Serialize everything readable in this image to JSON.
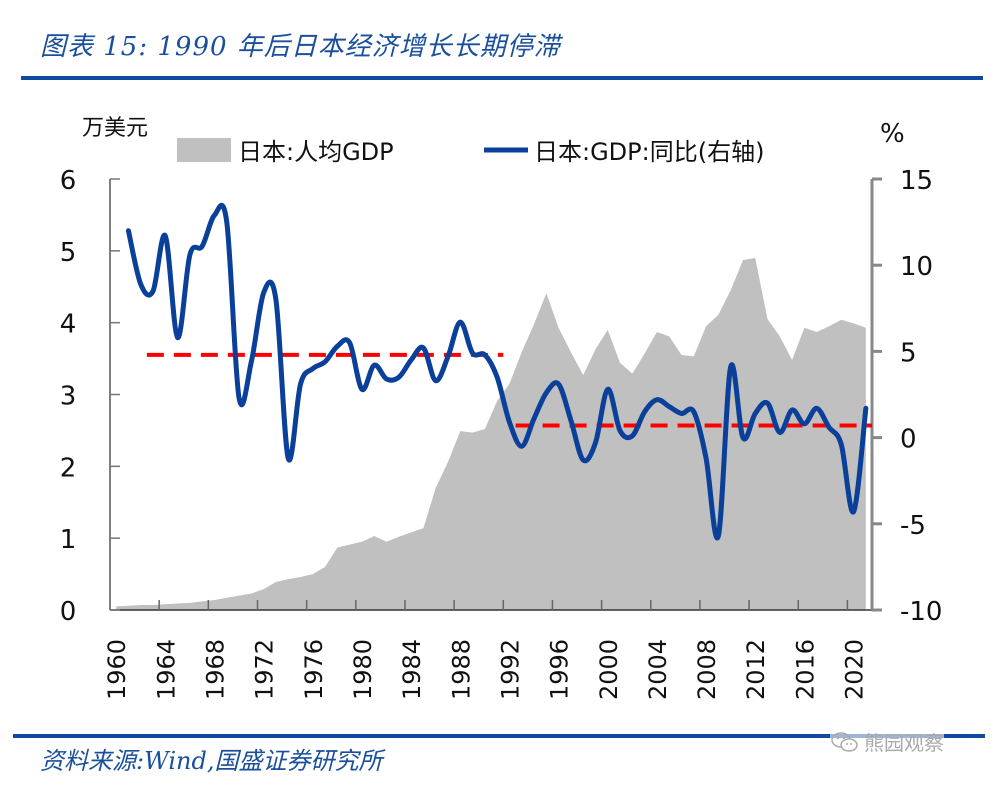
{
  "header": {
    "title": "图表 15:  1990 年后日本经济增长长期停滞"
  },
  "footer": {
    "source": "资料来源:Wind,国盛证券研究所",
    "watermark": "熊园观察",
    "watermark_icon": "wechat-icon"
  },
  "colors": {
    "brand_blue": "#0f4aa0",
    "area_fill": "#c0c0c0",
    "line": "#0a3f9a",
    "dashed": "#ff0000"
  },
  "chart_data": {
    "type": "area+line",
    "title": "1990 年后日本经济增长长期停滞",
    "xlabel": "",
    "ylabel": "万美元",
    "y2label": "%",
    "ylim": [
      0,
      6
    ],
    "y2lim": [
      -10,
      15
    ],
    "yticks": [
      "0",
      "1",
      "2",
      "3",
      "4",
      "5",
      "6"
    ],
    "y2ticks": [
      "-10",
      "-5",
      "0",
      "5",
      "10",
      "15"
    ],
    "xtick_labels": [
      "1960",
      "1964",
      "1968",
      "1972",
      "1976",
      "1980",
      "1984",
      "1988",
      "1992",
      "1996",
      "2000",
      "2004",
      "2008",
      "2012",
      "2016",
      "2020"
    ],
    "legend_position": "top",
    "grid": false,
    "categories": [
      1960,
      1961,
      1962,
      1963,
      1964,
      1965,
      1966,
      1967,
      1968,
      1969,
      1970,
      1971,
      1972,
      1973,
      1974,
      1975,
      1976,
      1977,
      1978,
      1979,
      1980,
      1981,
      1982,
      1983,
      1984,
      1985,
      1986,
      1987,
      1988,
      1989,
      1990,
      1991,
      1992,
      1993,
      1994,
      1995,
      1996,
      1997,
      1998,
      1999,
      2000,
      2001,
      2002,
      2003,
      2004,
      2005,
      2006,
      2007,
      2008,
      2009,
      2010,
      2011,
      2012,
      2013,
      2014,
      2015,
      2016,
      2017,
      2018,
      2019,
      2020,
      2021
    ],
    "series": [
      {
        "name": "日本:人均GDP",
        "type": "area",
        "axis": "left",
        "values": [
          0.05,
          0.06,
          0.07,
          0.07,
          0.08,
          0.09,
          0.1,
          0.12,
          0.14,
          0.17,
          0.2,
          0.23,
          0.29,
          0.39,
          0.43,
          0.46,
          0.5,
          0.6,
          0.87,
          0.91,
          0.95,
          1.03,
          0.95,
          1.02,
          1.08,
          1.14,
          1.7,
          2.06,
          2.49,
          2.47,
          2.52,
          2.91,
          3.15,
          3.59,
          3.98,
          4.41,
          3.93,
          3.59,
          3.27,
          3.63,
          3.9,
          3.44,
          3.29,
          3.57,
          3.87,
          3.81,
          3.55,
          3.53,
          3.95,
          4.11,
          4.45,
          4.87,
          4.9,
          4.05,
          3.81,
          3.48,
          3.93,
          3.87,
          3.95,
          4.04,
          3.99,
          3.93
        ]
      },
      {
        "name": "日本:GDP:同比(右轴)",
        "type": "line",
        "axis": "right",
        "values": [
          null,
          12.0,
          8.9,
          8.5,
          11.7,
          5.8,
          10.6,
          11.1,
          12.9,
          12.5,
          2.3,
          4.4,
          8.4,
          8.0,
          -1.2,
          3.1,
          4.0,
          4.4,
          5.3,
          5.5,
          2.8,
          4.2,
          3.4,
          3.5,
          4.5,
          5.2,
          3.3,
          4.7,
          6.7,
          4.9,
          4.8,
          3.5,
          0.9,
          -0.5,
          1.1,
          2.6,
          3.1,
          1.0,
          -1.3,
          -0.3,
          2.8,
          0.4,
          0.1,
          1.5,
          2.2,
          1.8,
          1.4,
          1.5,
          -1.2,
          -5.7,
          4.1,
          0.0,
          1.4,
          2.0,
          0.3,
          1.6,
          0.8,
          1.7,
          0.6,
          -0.4,
          -4.3,
          1.7
        ]
      }
    ],
    "reference_lines": [
      {
        "name": "pre-1992 average growth",
        "axis": "right",
        "value": 4.8,
        "from": 1963,
        "to": 1991,
        "style": "dashed",
        "color": "#ff0000"
      },
      {
        "name": "post-1992 average growth",
        "axis": "right",
        "value": 0.7,
        "from": 1993,
        "to": 2021,
        "style": "dashed",
        "color": "#ff0000"
      }
    ],
    "legend": [
      {
        "label": "日本:人均GDP",
        "marker": "area"
      },
      {
        "label": "日本:GDP:同比(右轴)",
        "marker": "line"
      }
    ]
  }
}
